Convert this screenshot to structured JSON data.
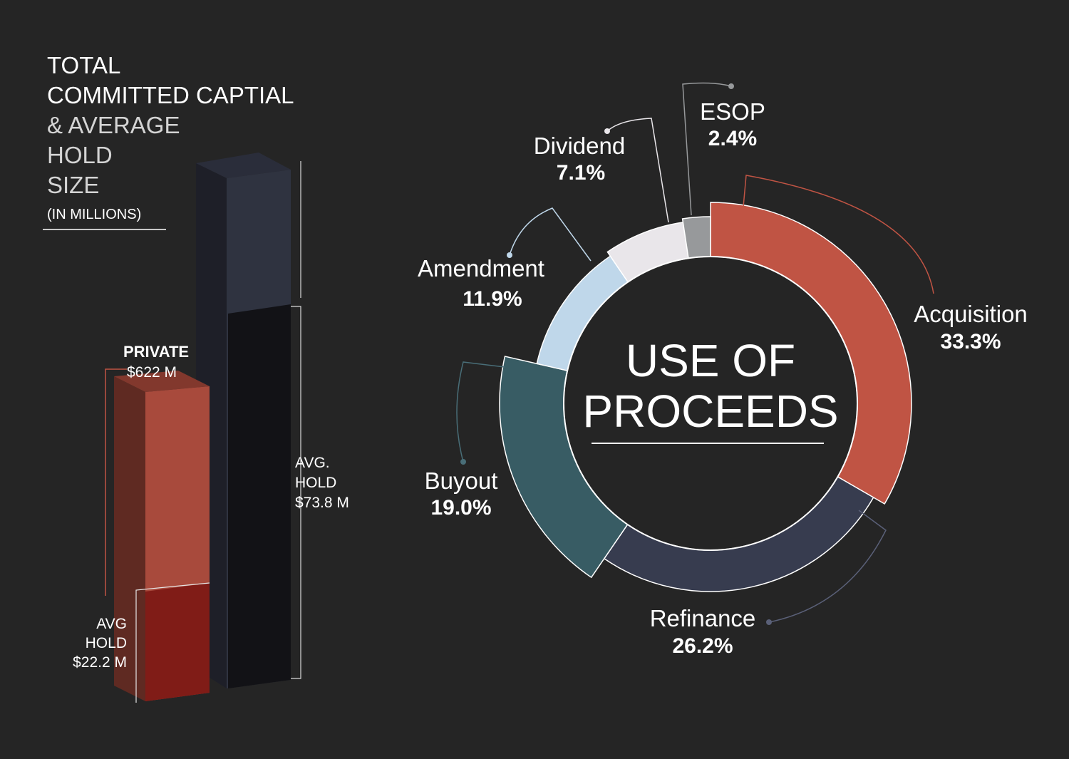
{
  "left_panel": {
    "title_lines": [
      "TOTAL",
      "COMMITTED CAPTIAL",
      "& AVERAGE",
      "HOLD",
      "SIZE"
    ],
    "subtitle": "(IN MILLIONS)",
    "private_label": "PRIVATE",
    "private_value": "$622 M",
    "private_avg_lines": [
      "AVG",
      "HOLD",
      "$22.2 M"
    ],
    "public_avg_lines": [
      "AVG.",
      "HOLD",
      "$73.8 M"
    ]
  },
  "donut": {
    "center_lines": [
      "USE OF",
      "PROCEEDS"
    ]
  },
  "chart_data": [
    {
      "type": "bar",
      "title": "TOTAL COMMITTED CAPTIAL & AVERAGE HOLD SIZE (IN MILLIONS)",
      "categories": [
        "PRIVATE",
        ""
      ],
      "series": [
        {
          "values": [
            622,
            null
          ]
        },
        {
          "name": "AVG HOLD",
          "values": [
            22.2,
            73.8
          ]
        }
      ],
      "colors": {
        "private_front": "#a84a3c",
        "private_side": "#5f2a22",
        "private_hold": "#801c17",
        "public_front": "#2f3340",
        "public_side": "#1e1f28",
        "public_hold": "#121216"
      }
    },
    {
      "type": "pie",
      "title": "USE OF PROCEEDS",
      "labels": [
        "Acquisition",
        "Refinance",
        "Buyout",
        "Amendment",
        "Dividend",
        "ESOP"
      ],
      "values": [
        33.3,
        26.2,
        19.0,
        11.9,
        7.1,
        2.4
      ],
      "display": [
        "33.3%",
        "26.2%",
        "19.0%",
        "11.9%",
        "7.1%",
        "2.4%"
      ],
      "colors": [
        "#c05444",
        "#373c4f",
        "#385c64",
        "#bfd7ea",
        "#e9e6ea",
        "#97999b"
      ]
    }
  ]
}
